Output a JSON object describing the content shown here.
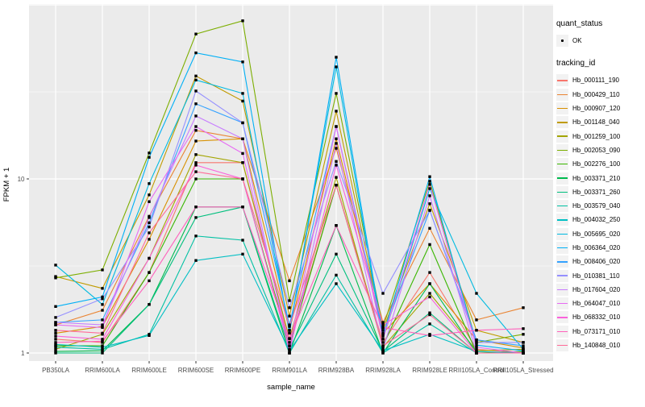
{
  "figure": {
    "background": "#FFFFFF",
    "panel_background": "#EBEBEB",
    "grid_color": "#FFFFFF",
    "axis_text_color": "#4D4D4D",
    "marker_color": "#000000"
  },
  "axes": {
    "x_title": "sample_name",
    "y_title": "FPKM + 1"
  },
  "legend": {
    "quant_status_title": "quant_status",
    "quant_status_items": [
      {
        "label": "OK",
        "marker": "black-point"
      }
    ],
    "tracking_id_title": "tracking_id"
  },
  "chart_data": {
    "type": "line",
    "title": "",
    "xlabel": "sample_name",
    "ylabel": "FPKM + 1",
    "y_scale": "log10",
    "ylim": [
      0.9,
      101
    ],
    "y_ticks": [
      {
        "v": 1,
        "label": "1"
      },
      {
        "v": 10,
        "label": "10"
      }
    ],
    "grid": {
      "major": [
        1,
        10,
        100
      ],
      "minor": [
        3.162,
        31.62
      ]
    },
    "legend_position": "right",
    "categories": [
      "PB350LA",
      "RRIM600LA",
      "RRIM600LE",
      "RRIM600SE",
      "RRIM600PE",
      "RRIM901LA",
      "RRIM928BA",
      "RRIM928LA",
      "RRIM928LE",
      "RRII105LA_Control",
      "RRII105LA_Stressed"
    ],
    "series": [
      {
        "name": "Hb_000111_190",
        "color": "#F8766D",
        "values": [
          1.2,
          1.15,
          2.9,
          12.4,
          12.4,
          1.15,
          9.2,
          1.15,
          2.9,
          1.05,
          1.0
        ]
      },
      {
        "name": "Hb_000429_110",
        "color": "#EA8331",
        "values": [
          1.45,
          1.76,
          6.1,
          19,
          17,
          2.6,
          15,
          1.5,
          5.2,
          1.55,
          1.82
        ]
      },
      {
        "name": "Hb_000907_120",
        "color": "#D89000",
        "values": [
          1.3,
          1.42,
          4.5,
          16.5,
          17,
          1.35,
          17,
          1.3,
          2.5,
          1.19,
          1.07
        ]
      },
      {
        "name": "Hb_001148_040",
        "color": "#C09B00",
        "values": [
          2.75,
          2.35,
          8.1,
          39,
          28,
          1.63,
          24.5,
          1.35,
          7.2,
          1.35,
          1.15
        ]
      },
      {
        "name": "Hb_001259_100",
        "color": "#A3A500",
        "values": [
          1.05,
          1.28,
          3.5,
          13.8,
          12.4,
          1.21,
          10.2,
          1.08,
          2.2,
          1.03,
          1.05
        ]
      },
      {
        "name": "Hb_002053_090",
        "color": "#7CAE00",
        "values": [
          2.7,
          3.0,
          14.1,
          68,
          81,
          2.0,
          31,
          1.4,
          9.7,
          1.15,
          1.28
        ]
      },
      {
        "name": "Hb_002276_100",
        "color": "#39B600",
        "values": [
          1.1,
          1.1,
          2.9,
          10,
          10,
          1.1,
          9.2,
          1.1,
          4.2,
          1.0,
          1.02
        ]
      },
      {
        "name": "Hb_003371_210",
        "color": "#00BB4E",
        "values": [
          1.02,
          1.03,
          1.9,
          6.9,
          6.9,
          1.0,
          5.4,
          1.0,
          2.5,
          1.0,
          1.0
        ]
      },
      {
        "name": "Hb_003371_260",
        "color": "#00BF7D",
        "values": [
          1.0,
          1.0,
          1.9,
          6.0,
          6.9,
          1.05,
          3.7,
          1.02,
          1.7,
          1.0,
          1.0
        ]
      },
      {
        "name": "Hb_003579_040",
        "color": "#00C1A3",
        "values": [
          1.08,
          1.05,
          1.28,
          4.7,
          4.45,
          1.0,
          2.8,
          1.0,
          1.47,
          1.0,
          1.0
        ]
      },
      {
        "name": "Hb_004032_250",
        "color": "#00BFC4",
        "values": [
          1.12,
          1.08,
          1.26,
          3.4,
          3.7,
          1.03,
          2.5,
          1.03,
          1.28,
          1.02,
          1.0
        ]
      },
      {
        "name": "Hb_005695_020",
        "color": "#00BAE0",
        "values": [
          3.2,
          1.9,
          9.4,
          37,
          31,
          1.35,
          44,
          1.2,
          8.8,
          2.2,
          1.05
        ]
      },
      {
        "name": "Hb_006364_020",
        "color": "#00B0F6",
        "values": [
          1.85,
          2.1,
          13.3,
          53,
          47,
          1.3,
          50,
          1.25,
          10.3,
          1.11,
          1.03
        ]
      },
      {
        "name": "Hb_008406_020",
        "color": "#35A2FF",
        "values": [
          1.5,
          1.55,
          5.6,
          27,
          21,
          1.45,
          20,
          1.28,
          6.6,
          1.19,
          1.1
        ]
      },
      {
        "name": "Hb_010381_110",
        "color": "#9590FF",
        "values": [
          1.6,
          2.05,
          5.3,
          32,
          21,
          1.82,
          12.6,
          2.2,
          6.6,
          1.15,
          1.15
        ]
      },
      {
        "name": "Hb_017604_020",
        "color": "#C77CFF",
        "values": [
          1.5,
          1.45,
          6.0,
          23,
          17,
          1.0,
          16,
          1.05,
          8.0,
          1.0,
          1.0
        ]
      },
      {
        "name": "Hb_064047_010",
        "color": "#E76BF3",
        "values": [
          1.45,
          1.4,
          7.4,
          20,
          14,
          1.1,
          20,
          1.2,
          9.3,
          1.08,
          1.0
        ]
      },
      {
        "name": "Hb_068332_010",
        "color": "#FA62DB",
        "values": [
          1.25,
          1.2,
          3.5,
          12,
          10,
          1.05,
          12,
          1.45,
          2.1,
          1.0,
          1.0
        ]
      },
      {
        "name": "Hb_073171_010",
        "color": "#FF62BC",
        "values": [
          1.15,
          1.17,
          2.6,
          6.9,
          6.9,
          1.21,
          5.4,
          1.4,
          1.26,
          1.35,
          1.38
        ]
      },
      {
        "name": "Hb_140848_010",
        "color": "#FF6A98",
        "values": [
          1.35,
          1.3,
          4.9,
          11,
          10,
          1.42,
          9.2,
          1.1,
          1.66,
          1.0,
          1.0
        ]
      }
    ]
  }
}
